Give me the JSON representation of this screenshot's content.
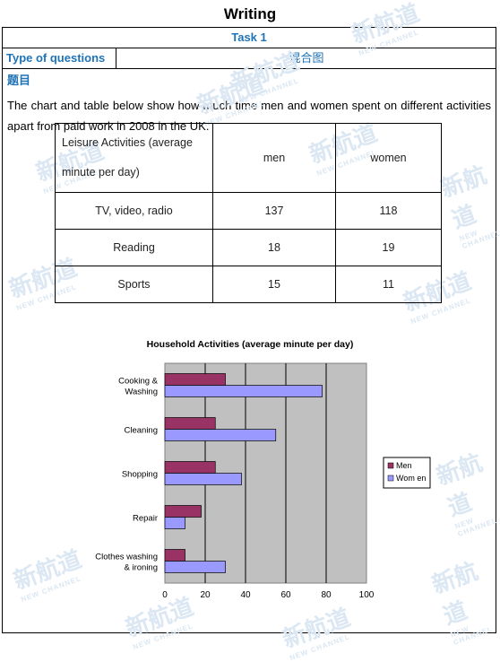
{
  "page": {
    "title": "Writing",
    "task": "Task 1",
    "type_label": "Type of questions",
    "type_value": "混合图",
    "heading": "题目",
    "prompt": "The chart and table below show how much time men and women spent on different activities apart from paid work in 2008 in the UK."
  },
  "watermark": {
    "text": "新航道",
    "sub": "NEW CHANNEL"
  },
  "leisure_table": {
    "header_line1": "Leisure Activities (average",
    "header_line2": "minute per day)",
    "col_men": "men",
    "col_women": "women",
    "rows": [
      {
        "activity": "TV, video, radio",
        "men": "137",
        "women": "118"
      },
      {
        "activity": "Reading",
        "men": "18",
        "women": "19"
      },
      {
        "activity": "Sports",
        "men": "15",
        "women": "11"
      }
    ]
  },
  "chart_data": {
    "type": "bar",
    "orientation": "horizontal",
    "title": "Household Activities (average minute per day)",
    "categories": [
      "Cooking & Washing",
      "Cleaning",
      "Shopping",
      "Repair",
      "Clothes washing & ironing"
    ],
    "category_lines": [
      [
        "Cooking &",
        "Washing"
      ],
      [
        "Cleaning"
      ],
      [
        "Shopping"
      ],
      [
        "Repair"
      ],
      [
        "Clothes washing",
        "& ironing"
      ]
    ],
    "series": [
      {
        "name": "Men",
        "values": [
          30,
          25,
          25,
          18,
          10
        ],
        "color": "#993366"
      },
      {
        "name": "Wom en",
        "values": [
          78,
          55,
          38,
          10,
          30
        ],
        "color": "#9999ff"
      }
    ],
    "xlim": [
      0,
      100
    ],
    "xticks": [
      "0",
      "20",
      "40",
      "60",
      "80",
      "100"
    ],
    "grid": true,
    "plot_background": "#c0c0c0",
    "legend_position": "right"
  }
}
